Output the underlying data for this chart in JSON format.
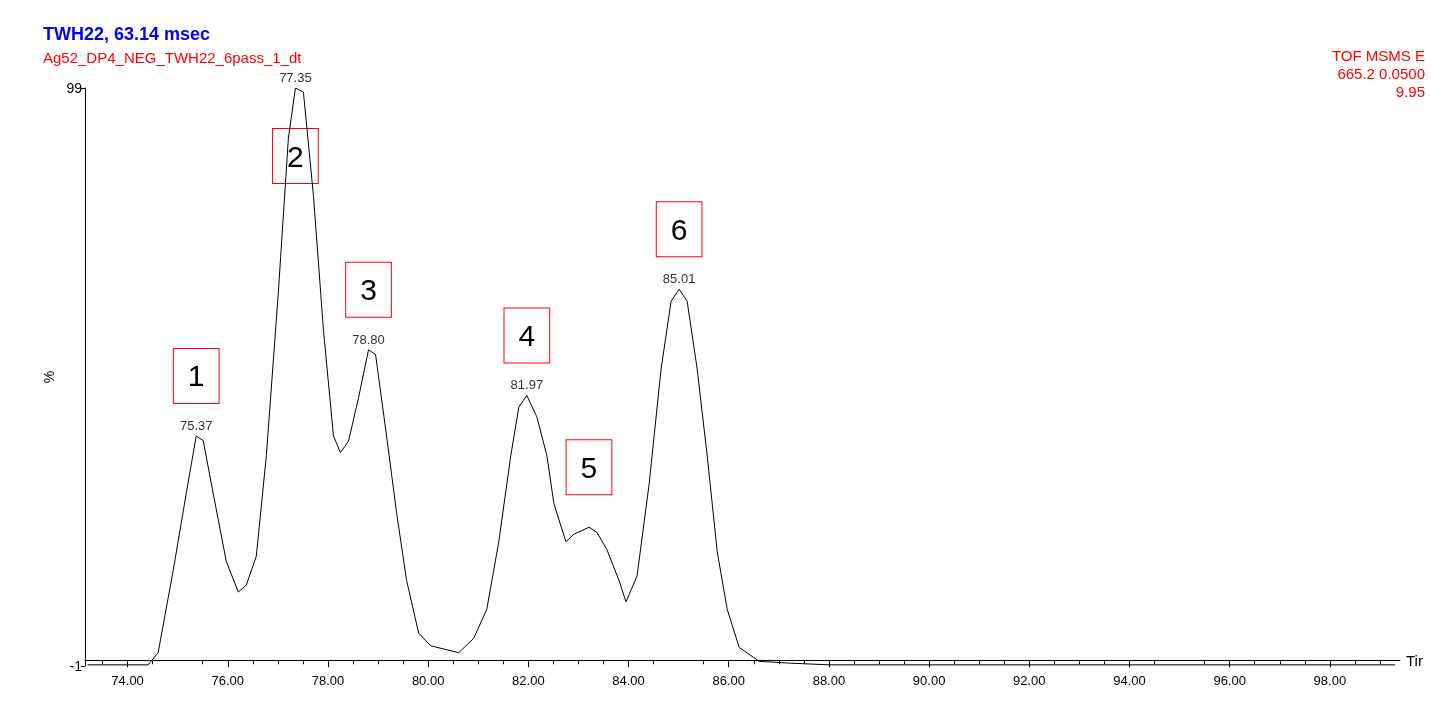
{
  "chart_data": {
    "type": "line",
    "title": "TWH22, 63.14 msec",
    "subtitle": "Ag52_DP4_NEG_TWH22_6pass_1_dt",
    "xlabel": "Tir",
    "ylabel": "%",
    "x": [
      73.2,
      74.41,
      74.61,
      74.91,
      75.17,
      75.37,
      75.51,
      75.71,
      75.97,
      76.21,
      76.37,
      76.57,
      76.77,
      77.01,
      77.21,
      77.35,
      77.51,
      77.71,
      77.91,
      78.11,
      78.25,
      78.41,
      78.61,
      78.81,
      78.95,
      79.17,
      79.37,
      79.57,
      79.81,
      80.05,
      80.61,
      80.91,
      81.17,
      81.41,
      81.65,
      81.81,
      81.97,
      82.17,
      82.37,
      82.51,
      82.75,
      82.91,
      83.21,
      83.37,
      83.57,
      83.81,
      83.95,
      84.17,
      84.41,
      84.65,
      84.85,
      85.01,
      85.17,
      85.37,
      85.57,
      85.77,
      85.97,
      86.21,
      86.61,
      87.21,
      88.01,
      99.3
    ],
    "series": [
      {
        "color": "#000000",
        "values": [
          -0.8,
          -0.8,
          1.3,
          15.5,
          28.8,
          38.8,
          38,
          28.8,
          17.1,
          11.8,
          13,
          18,
          35.4,
          63.7,
          90.3,
          99,
          98.3,
          80.4,
          57.1,
          38.8,
          35.9,
          37.9,
          45.4,
          53.7,
          52.9,
          38.8,
          25.5,
          13.8,
          4.7,
          2.5,
          1.3,
          3.8,
          8.8,
          20.5,
          35.4,
          43.8,
          45.8,
          42.1,
          35.4,
          27.1,
          20.5,
          21.8,
          23,
          22.1,
          19.1,
          13.8,
          10.1,
          14.6,
          30.4,
          50.4,
          62.1,
          64.2,
          62.1,
          50.4,
          35.4,
          18.8,
          8.8,
          2.2,
          -0.2,
          -0.5,
          -0.8,
          -0.8
        ]
      }
    ],
    "xlim": [
      73.15,
      99.4
    ],
    "xticks": [
      {
        "value": 74,
        "label": "74.00"
      },
      {
        "value": 76,
        "label": "76.00"
      },
      {
        "value": 78,
        "label": "78.00"
      },
      {
        "value": 80,
        "label": "80.00"
      },
      {
        "value": 82,
        "label": "82.00"
      },
      {
        "value": 84,
        "label": "84.00"
      },
      {
        "value": 86,
        "label": "86.00"
      },
      {
        "value": 88,
        "label": "88.00"
      },
      {
        "value": 90,
        "label": "90.00"
      },
      {
        "value": 92,
        "label": "92.00"
      },
      {
        "value": 94,
        "label": "94.00"
      },
      {
        "value": 96,
        "label": "96.00"
      },
      {
        "value": 98,
        "label": "98.00"
      }
    ],
    "ylim": [
      -1,
      99
    ],
    "yticks": [
      -1,
      99
    ],
    "grid": false,
    "marker": "none",
    "line_style": "solid",
    "annotations": [
      "TOF MSMS E",
      "665.2 0.0500",
      "9.95",
      {
        "text": "75.37",
        "x": 75.37,
        "y": 38.8
      },
      {
        "text": "77.35",
        "x": 77.35,
        "y": 99
      },
      {
        "text": "78.80",
        "x": 78.81,
        "y": 53.7
      },
      {
        "text": "81.97",
        "x": 81.97,
        "y": 45.8
      },
      {
        "text": "85.01",
        "x": 85.01,
        "y": 64.2
      },
      {
        "text": "1",
        "x": 75.37,
        "y": 38.8
      },
      {
        "text": "2",
        "x": 77.35,
        "y": 99
      },
      {
        "text": "3",
        "x": 78.81,
        "y": 53.7
      },
      {
        "text": "4",
        "x": 81.97,
        "y": 45.8
      },
      {
        "text": "5",
        "x": 83.21,
        "y": 23
      },
      {
        "text": "6",
        "x": 85.01,
        "y": 64.2
      }
    ]
  }
}
